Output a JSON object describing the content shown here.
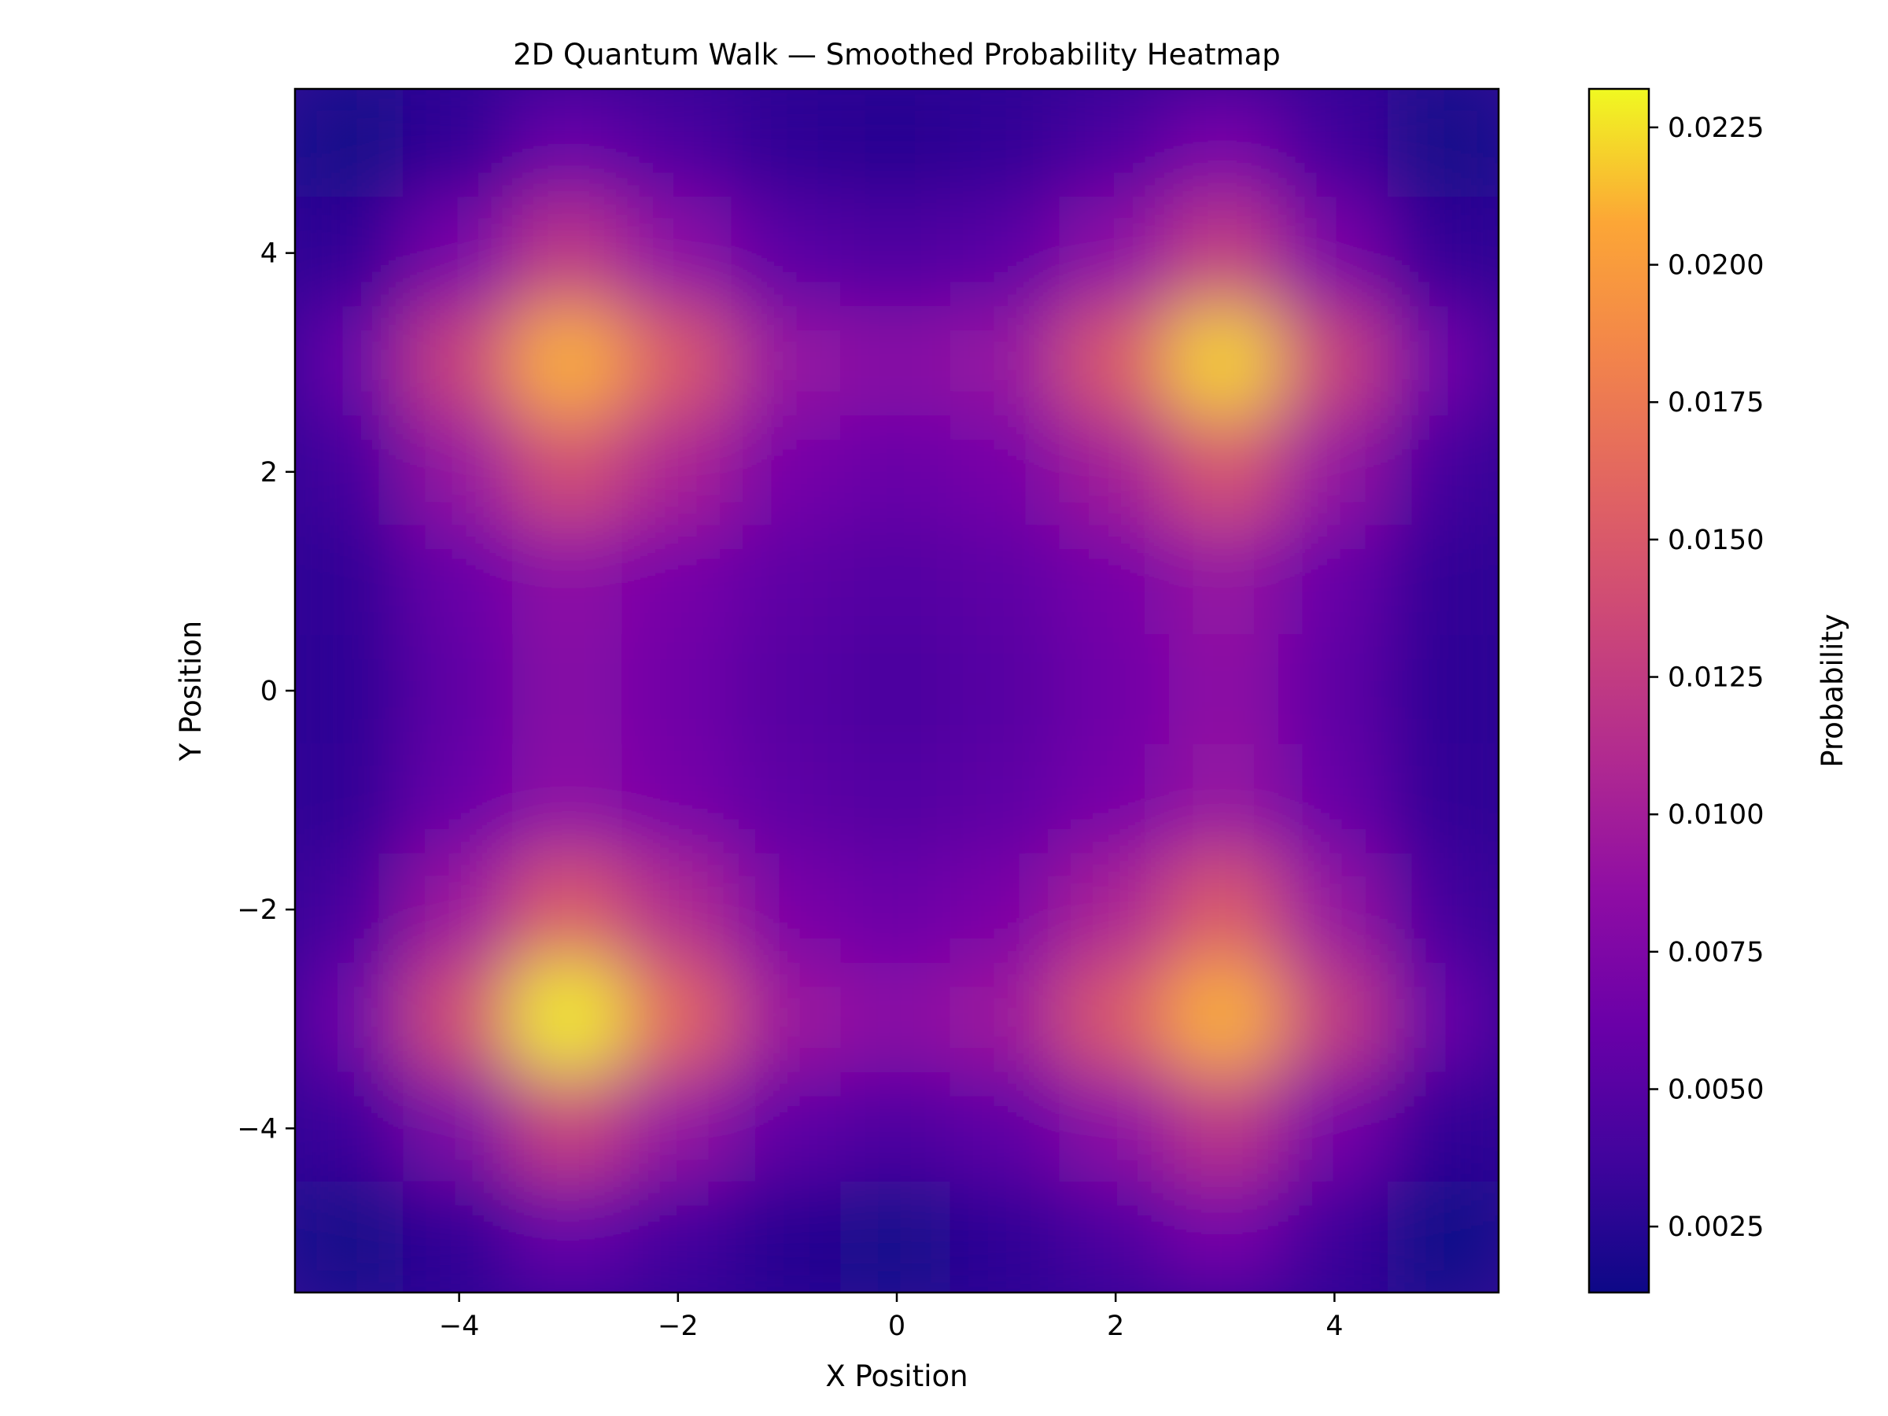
{
  "chart_data": {
    "type": "heatmap",
    "title": "2D Quantum Walk — Smoothed Probability Heatmap",
    "xlabel": "X Position",
    "ylabel": "Y Position",
    "xlim": [
      -5.5,
      5.5
    ],
    "ylim": [
      -5.5,
      5.5
    ],
    "x_ticks": [
      -4,
      -2,
      0,
      2,
      4
    ],
    "y_ticks": [
      -4,
      -2,
      0,
      2,
      4
    ],
    "x_tick_labels": [
      "−4",
      "−2",
      "0",
      "2",
      "4"
    ],
    "y_tick_labels": [
      "−4",
      "−2",
      "0",
      "2",
      "4"
    ],
    "x": [
      -5,
      -4,
      -3,
      -2,
      -1,
      0,
      1,
      2,
      3,
      4,
      5
    ],
    "y": [
      -5,
      -4,
      -3,
      -2,
      -1,
      0,
      1,
      2,
      3,
      4,
      5
    ],
    "z_rows_top_to_bottom": [
      [
        0.0016,
        0.003,
        0.006,
        0.0045,
        0.0028,
        0.0024,
        0.003,
        0.0045,
        0.007,
        0.0038,
        0.0016
      ],
      [
        0.003,
        0.007,
        0.012,
        0.0085,
        0.0052,
        0.0045,
        0.0052,
        0.0085,
        0.0125,
        0.0072,
        0.003
      ],
      [
        0.006,
        0.013,
        0.021,
        0.015,
        0.009,
        0.008,
        0.009,
        0.015,
        0.022,
        0.013,
        0.0065
      ],
      [
        0.004,
        0.009,
        0.014,
        0.0105,
        0.007,
        0.006,
        0.007,
        0.01,
        0.0145,
        0.009,
        0.004
      ],
      [
        0.003,
        0.006,
        0.0085,
        0.007,
        0.0055,
        0.0048,
        0.0055,
        0.007,
        0.009,
        0.006,
        0.003
      ],
      [
        0.0028,
        0.0055,
        0.008,
        0.0065,
        0.005,
        0.0042,
        0.005,
        0.0065,
        0.0085,
        0.0055,
        0.0028
      ],
      [
        0.003,
        0.006,
        0.0085,
        0.007,
        0.0055,
        0.0048,
        0.0055,
        0.007,
        0.009,
        0.006,
        0.003
      ],
      [
        0.0042,
        0.0095,
        0.015,
        0.011,
        0.0072,
        0.0062,
        0.0072,
        0.0105,
        0.015,
        0.009,
        0.004
      ],
      [
        0.0065,
        0.014,
        0.0228,
        0.016,
        0.0095,
        0.0082,
        0.0095,
        0.015,
        0.021,
        0.0125,
        0.006
      ],
      [
        0.0035,
        0.0075,
        0.013,
        0.009,
        0.0055,
        0.0045,
        0.0055,
        0.0085,
        0.012,
        0.007,
        0.003
      ],
      [
        0.0016,
        0.003,
        0.006,
        0.004,
        0.0024,
        0.0018,
        0.0028,
        0.0045,
        0.007,
        0.0035,
        0.0015
      ]
    ],
    "colormap": "plasma",
    "colorbar": {
      "label": "Probability",
      "range": [
        0.0013,
        0.0232
      ],
      "ticks": [
        0.0025,
        0.005,
        0.0075,
        0.01,
        0.0125,
        0.015,
        0.0175,
        0.02,
        0.0225
      ],
      "tick_labels": [
        "0.0025",
        "0.0050",
        "0.0075",
        "0.0100",
        "0.0125",
        "0.0150",
        "0.0175",
        "0.0200",
        "0.0225"
      ]
    },
    "grid": false,
    "legend": "none"
  }
}
